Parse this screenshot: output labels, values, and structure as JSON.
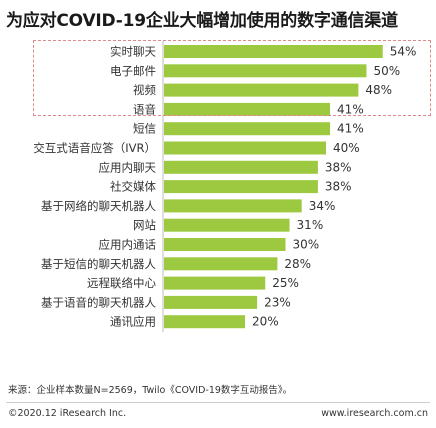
{
  "title": "为应对COVID-19企业大幅增加使用的数字通信渠道",
  "chart_data": {
    "type": "bar",
    "orientation": "horizontal",
    "categories": [
      "实时聊天",
      "电子邮件",
      "视频",
      "语音",
      "短信",
      "交互式语音应答（IVR）",
      "应用内聊天",
      "社交媒体",
      "基于网络的聊天机器人",
      "网站",
      "应用内通话",
      "基于短信的聊天机器人",
      "远程联络中心",
      "基于语音的聊天机器人",
      "通讯应用"
    ],
    "values": [
      54,
      50,
      48,
      41,
      41,
      40,
      38,
      38,
      34,
      31,
      30,
      28,
      25,
      23,
      20
    ],
    "value_labels": [
      "54%",
      "50%",
      "48%",
      "41%",
      "41%",
      "40%",
      "38%",
      "38%",
      "34%",
      "31%",
      "30%",
      "28%",
      "25%",
      "23%",
      "20%"
    ],
    "unit": "%",
    "highlighted_categories": [
      "实时聊天",
      "电子邮件",
      "视频"
    ],
    "bar_color": "#9dc940",
    "highlight_border_color": "#e08a8a"
  },
  "source": "来源：企业样本数量N=2569，Twilo《COVID-19数字互动报告》。",
  "copyright": "©2020.12 iResearch Inc.",
  "website": "www.iresearch.com.cn"
}
